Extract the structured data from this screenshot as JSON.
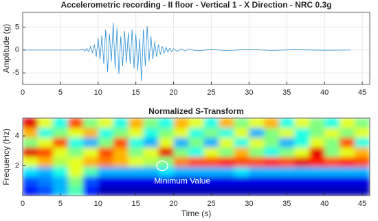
{
  "chart_data": [
    {
      "type": "line",
      "title": "Accelerometric recording - II floor - Vertical 1 - X Direction - NRC 0.3g",
      "ylabel": "Amplitude (g)",
      "x": [
        0,
        7.5,
        8,
        8.25,
        8.5,
        8.75,
        9,
        9.25,
        9.5,
        9.75,
        10,
        10.25,
        10.5,
        10.75,
        11,
        11.25,
        11.5,
        11.75,
        12,
        12.25,
        12.5,
        12.75,
        13,
        13.25,
        13.5,
        13.75,
        14,
        14.25,
        14.5,
        14.75,
        15,
        15.25,
        15.5,
        15.75,
        16,
        16.25,
        16.5,
        16.75,
        17,
        17.25,
        17.5,
        17.75,
        18,
        18.25,
        18.5,
        18.75,
        19,
        19.25,
        19.5,
        19.75,
        20,
        20.5,
        21,
        21.5,
        22,
        23,
        25,
        27,
        30,
        33,
        36,
        40,
        43.5
      ],
      "series": [
        {
          "color": "#2b8fd6",
          "values": [
            0,
            0,
            0.1,
            -0.2,
            0.3,
            -0.4,
            0.8,
            -0.6,
            1.2,
            -1.5,
            2.5,
            -2,
            3.2,
            -3,
            4.5,
            -4.8,
            3.5,
            -2.5,
            6,
            -4,
            4.8,
            -5.2,
            3,
            -3.5,
            4.2,
            -2.8,
            3.8,
            -3,
            4.5,
            -4,
            3.5,
            -4.5,
            2.5,
            -6.8,
            4.5,
            -3.5,
            5.2,
            -2.5,
            3,
            -2,
            1.8,
            -1.5,
            1.2,
            -1,
            0.8,
            -0.7,
            0.6,
            -0.5,
            0.4,
            -0.4,
            0.3,
            -0.3,
            0.25,
            -0.2,
            0.2,
            -0.15,
            0.1,
            -0.1,
            0.1,
            -0.08,
            0.06,
            -0.05,
            0
          ]
        }
      ],
      "xlim": [
        0,
        46
      ],
      "xticks": [
        0,
        5,
        10,
        15,
        20,
        25,
        30,
        35,
        40,
        45
      ],
      "ylim": [
        -7.5,
        8.2
      ],
      "yticks": [
        -5,
        0,
        5
      ],
      "grid": true
    },
    {
      "type": "heatmap",
      "title": "Normalized S-Transform",
      "xlabel": "Time (s)",
      "ylabel": "Frequency (Hz)",
      "colormap": "jet",
      "xbins": [
        0,
        2,
        4,
        6,
        8,
        10,
        12,
        14,
        16,
        18,
        20,
        22,
        24,
        26,
        28,
        30,
        32,
        34,
        36,
        38,
        40,
        42,
        44,
        46
      ],
      "ybins": [
        0,
        0.65,
        1.3,
        1.95,
        2.6,
        3.25,
        3.9,
        4.55,
        5.2
      ],
      "z": [
        [
          0.15,
          0.2,
          0.3,
          0.45,
          0.15,
          0.05,
          0.05,
          0.05,
          0.05,
          0.05,
          0.05,
          0.05,
          0.05,
          0.05,
          0.05,
          0.05,
          0.05,
          0.05,
          0.05,
          0.05,
          0.05,
          0.05,
          0.05
        ],
        [
          0.2,
          0.25,
          0.3,
          0.5,
          0.2,
          0.1,
          0.1,
          0.1,
          0.1,
          0.12,
          0.1,
          0.1,
          0.1,
          0.1,
          0.1,
          0.1,
          0.1,
          0.1,
          0.1,
          0.1,
          0.1,
          0.1,
          0.1
        ],
        [
          0.35,
          0.3,
          0.4,
          0.6,
          0.45,
          0.3,
          0.3,
          0.3,
          0.3,
          0.35,
          0.3,
          0.3,
          0.3,
          0.3,
          0.35,
          0.3,
          0.3,
          0.3,
          0.3,
          0.3,
          0.3,
          0.3,
          0.3
        ],
        [
          0.6,
          0.7,
          0.55,
          0.6,
          0.7,
          0.75,
          0.7,
          0.6,
          0.55,
          0.5,
          0.75,
          0.8,
          0.8,
          0.85,
          0.8,
          0.8,
          0.85,
          0.8,
          0.9,
          0.85,
          0.8,
          0.85,
          0.8
        ],
        [
          0.9,
          0.8,
          0.6,
          0.5,
          0.6,
          0.8,
          0.7,
          0.5,
          0.6,
          0.9,
          0.5,
          0.4,
          0.6,
          0.5,
          0.7,
          0.5,
          0.4,
          0.5,
          0.6,
          0.9,
          0.5,
          0.6,
          0.7
        ],
        [
          0.5,
          0.6,
          0.8,
          0.4,
          0.3,
          0.5,
          0.8,
          0.4,
          0.3,
          0.6,
          0.3,
          0.5,
          0.3,
          0.6,
          0.4,
          0.6,
          0.5,
          0.3,
          0.4,
          0.6,
          0.5,
          0.8,
          0.4
        ],
        [
          0.7,
          0.4,
          0.5,
          0.6,
          0.7,
          0.4,
          0.5,
          0.6,
          0.4,
          0.5,
          0.6,
          0.4,
          0.5,
          0.4,
          0.6,
          0.3,
          0.5,
          0.6,
          0.4,
          0.5,
          0.6,
          0.5,
          0.6
        ],
        [
          0.9,
          0.6,
          0.4,
          0.8,
          0.5,
          0.6,
          0.4,
          0.7,
          0.5,
          0.4,
          0.7,
          0.6,
          0.4,
          0.7,
          0.5,
          0.6,
          0.7,
          0.4,
          0.6,
          0.5,
          0.4,
          0.6,
          0.5
        ]
      ],
      "xlim": [
        0,
        46
      ],
      "xticks": [
        0,
        5,
        10,
        15,
        20,
        25,
        30,
        35,
        40,
        45
      ],
      "ylim": [
        0,
        5.2
      ],
      "yticks": [
        2,
        4
      ],
      "annotation": {
        "text": "Minimum Value",
        "x": 18.5,
        "y": 2
      }
    }
  ]
}
